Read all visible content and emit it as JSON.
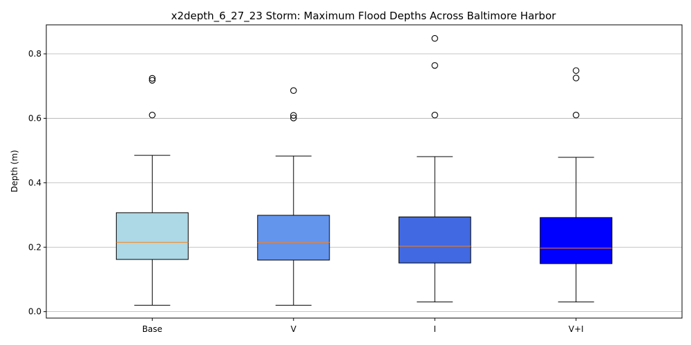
{
  "chart_data": {
    "type": "box",
    "title": "x2depth_6_27_23 Storm: Maximum Flood Depths Across Baltimore Harbor",
    "xlabel": "",
    "ylabel": "Depth (m)",
    "ylim": [
      -0.02,
      0.89
    ],
    "yticks": [
      0.0,
      0.2,
      0.4,
      0.6,
      0.8
    ],
    "ytick_labels": [
      "0.0",
      "0.2",
      "0.4",
      "0.6",
      "0.8"
    ],
    "grid": "y",
    "categories": [
      "Base",
      "V",
      "I",
      "V+I"
    ],
    "boxes": [
      {
        "label": "Base",
        "color": "#add8e6",
        "whisker_low": 0.02,
        "q1": 0.162,
        "median": 0.215,
        "q3": 0.307,
        "whisker_high": 0.485,
        "outliers": [
          0.61,
          0.718,
          0.724
        ]
      },
      {
        "label": "V",
        "color": "#6495ed",
        "whisker_low": 0.02,
        "q1": 0.16,
        "median": 0.215,
        "q3": 0.299,
        "whisker_high": 0.483,
        "outliers": [
          0.601,
          0.609,
          0.686
        ]
      },
      {
        "label": "I",
        "color": "#4169e1",
        "whisker_low": 0.03,
        "q1": 0.151,
        "median": 0.203,
        "q3": 0.294,
        "whisker_high": 0.481,
        "outliers": [
          0.61,
          0.764,
          0.848
        ]
      },
      {
        "label": "V+I",
        "color": "#0000ff",
        "whisker_low": 0.03,
        "q1": 0.149,
        "median": 0.197,
        "q3": 0.292,
        "whisker_high": 0.479,
        "outliers": [
          0.61,
          0.725,
          0.748
        ]
      }
    ],
    "median_color": "#ff7f0e",
    "grid_color": "#b0b0b0"
  }
}
